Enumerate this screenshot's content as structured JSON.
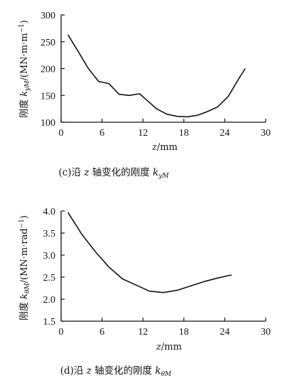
{
  "chart_data": [
    {
      "type": "line",
      "caption_prefix": "(c)沿 ",
      "caption_var": "z",
      "caption_mid": " 轴变化的刚度 ",
      "caption_k": "k",
      "caption_sub": "yM",
      "xlabel_var": "z",
      "xlabel_unit": "/mm",
      "ylabel_prefix": "刚度 ",
      "ylabel_k": "k",
      "ylabel_sub": "yM",
      "ylabel_unit": "/(MN·m·m",
      "ylabel_sup": "−1",
      "ylabel_close": ")",
      "xlim": [
        0,
        30
      ],
      "ylim": [
        100,
        300
      ],
      "xticks": [
        0,
        6,
        12,
        18,
        24,
        30
      ],
      "yticks": [
        100,
        150,
        200,
        250,
        300
      ],
      "x": [
        1,
        2.5,
        4,
        5.5,
        7,
        8.5,
        10,
        11.5,
        12.5,
        14,
        15.5,
        17,
        18.5,
        20,
        21.5,
        23,
        24.5,
        26,
        27
      ],
      "values": [
        263,
        232,
        200,
        176,
        172,
        152,
        150,
        153,
        142,
        125,
        115,
        111,
        110,
        113,
        120,
        129,
        148,
        180,
        200
      ]
    },
    {
      "type": "line",
      "caption_prefix": "(d)沿 ",
      "caption_var": "z",
      "caption_mid": " 轴变化的刚度 ",
      "caption_k": "k",
      "caption_sub": "θM",
      "xlabel_var": "z",
      "xlabel_unit": "/mm",
      "ylabel_prefix": "刚度 ",
      "ylabel_k": "k",
      "ylabel_sub": "θM",
      "ylabel_unit": "/(MN·m·rad",
      "ylabel_sup": "−1",
      "ylabel_close": ")",
      "xlim": [
        0,
        30
      ],
      "ylim": [
        1.5,
        4.0
      ],
      "xticks": [
        0,
        6,
        12,
        18,
        24,
        30
      ],
      "yticks": [
        1.5,
        2.0,
        2.5,
        3.0,
        3.5,
        4.0
      ],
      "x": [
        1,
        3,
        5,
        7,
        9,
        11,
        13,
        15,
        17,
        19,
        21,
        23,
        25
      ],
      "values": [
        3.97,
        3.48,
        3.08,
        2.73,
        2.46,
        2.32,
        2.18,
        2.15,
        2.2,
        2.3,
        2.4,
        2.48,
        2.55
      ]
    }
  ]
}
